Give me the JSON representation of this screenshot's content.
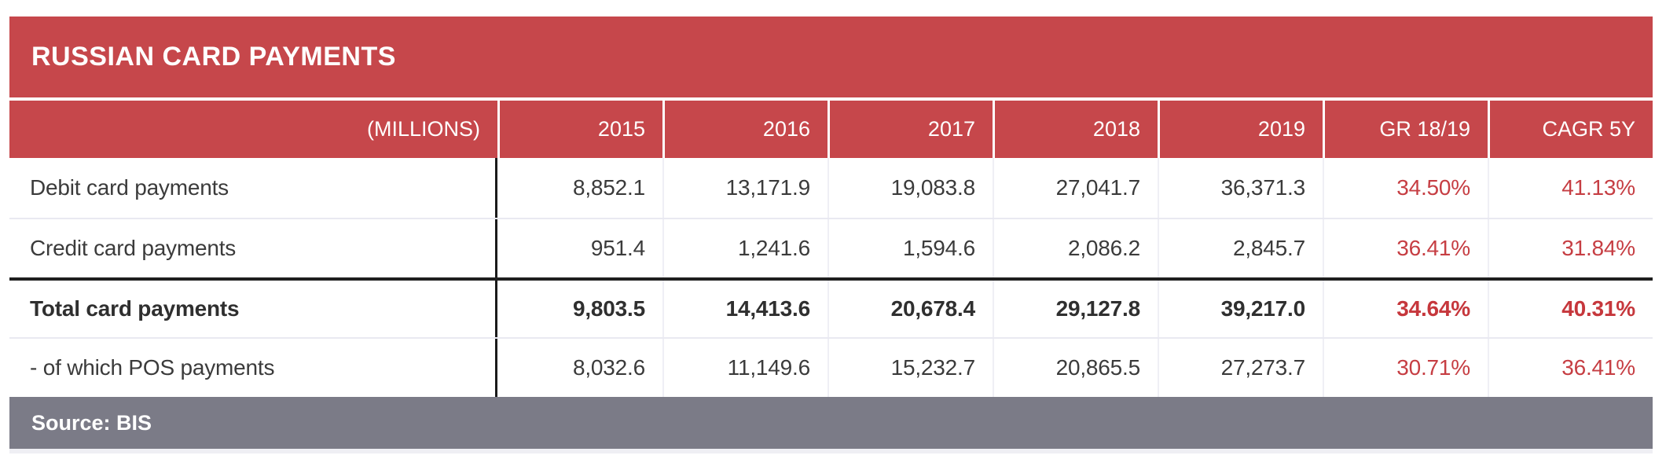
{
  "title": "RUSSIAN CARD PAYMENTS",
  "unit_label": "(MILLIONS)",
  "source": "Source: BIS",
  "colors": {
    "brand_red": "#C6474B",
    "percent_red": "#C63E43",
    "footer_gray": "#7B7B87",
    "text_dark": "#3B3B3B",
    "divider_light": "#E9E9F1",
    "rule_black": "#1A1A1A"
  },
  "table": {
    "columns": [
      "2015",
      "2016",
      "2017",
      "2018",
      "2019",
      "GR 18/19",
      "CAGR 5Y"
    ],
    "rows": [
      {
        "label": "Debit card payments",
        "values": [
          "8,852.1",
          "13,171.9",
          "19,083.8",
          "27,041.7",
          "36,371.3",
          "34.50%",
          "41.13%"
        ]
      },
      {
        "label": "Credit card payments",
        "values": [
          "951.4",
          "1,241.6",
          "1,594.6",
          "2,086.2",
          "2,845.7",
          "36.41%",
          "31.84%"
        ]
      },
      {
        "label": "Total card payments",
        "values": [
          "9,803.5",
          "14,413.6",
          "20,678.4",
          "29,127.8",
          "39,217.0",
          "34.64%",
          "40.31%"
        ]
      },
      {
        "label": "- of which POS payments",
        "values": [
          "8,032.6",
          "11,149.6",
          "15,232.7",
          "20,865.5",
          "27,273.7",
          "30.71%",
          "36.41%"
        ]
      }
    ]
  },
  "chart_data": {
    "type": "table",
    "title": "RUSSIAN CARD PAYMENTS",
    "unit": "MILLIONS",
    "categories": [
      "2015",
      "2016",
      "2017",
      "2018",
      "2019"
    ],
    "series": [
      {
        "name": "Debit card payments",
        "values": [
          8852.1,
          13171.9,
          19083.8,
          27041.7,
          36371.3
        ],
        "gr_18_19_pct": 34.5,
        "cagr_5y_pct": 41.13
      },
      {
        "name": "Credit card payments",
        "values": [
          951.4,
          1241.6,
          1594.6,
          2086.2,
          2845.7
        ],
        "gr_18_19_pct": 36.41,
        "cagr_5y_pct": 31.84
      },
      {
        "name": "Total card payments",
        "values": [
          9803.5,
          14413.6,
          20678.4,
          29127.8,
          39217.0
        ],
        "gr_18_19_pct": 34.64,
        "cagr_5y_pct": 40.31
      },
      {
        "name": "- of which POS payments",
        "values": [
          8032.6,
          11149.6,
          15232.7,
          20865.5,
          27273.7
        ],
        "gr_18_19_pct": 30.71,
        "cagr_5y_pct": 36.41
      }
    ],
    "source": "Source: BIS"
  }
}
